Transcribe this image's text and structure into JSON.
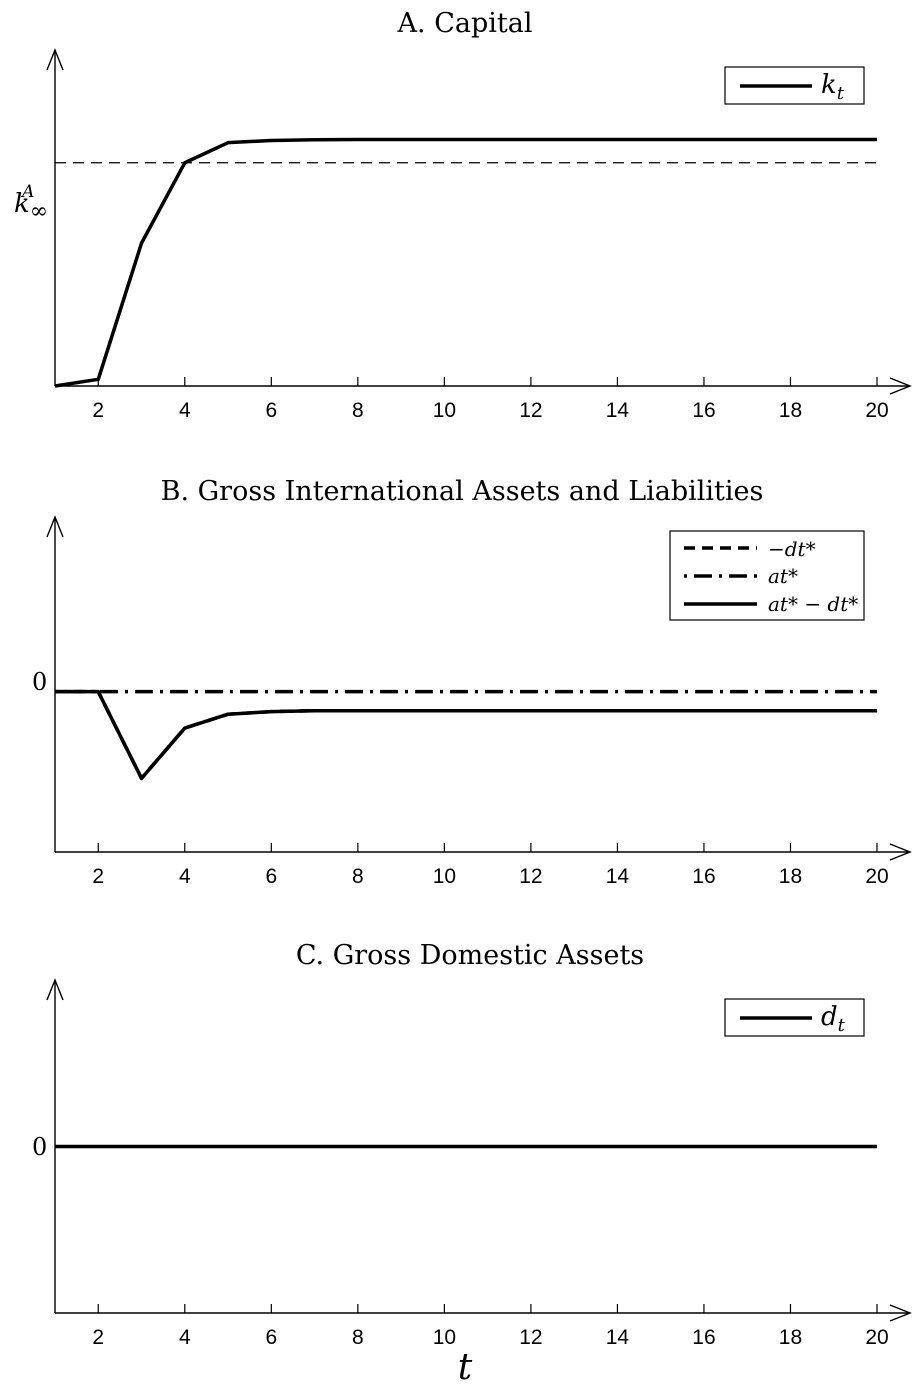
{
  "chart_data": [
    {
      "type": "line",
      "title": "A. Capital",
      "x": [
        1,
        2,
        3,
        4,
        5,
        6,
        7,
        8,
        9,
        10,
        11,
        12,
        13,
        14,
        15,
        16,
        17,
        18,
        19,
        20
      ],
      "xticks": [
        2,
        4,
        6,
        8,
        10,
        12,
        14,
        16,
        18,
        20
      ],
      "xlim": [
        1,
        20
      ],
      "ylim": [
        0,
        1.55
      ],
      "reference_line": {
        "value": 1.0,
        "label": "k∞A",
        "label_base": "k",
        "label_sup": "A",
        "label_sub": "∞",
        "style": "dashed"
      },
      "series": [
        {
          "name": "kt",
          "name_base": "k",
          "name_sub": "t",
          "style": "solid",
          "values": [
            0,
            0.03,
            0.64,
            1.0,
            1.09,
            1.1,
            1.103,
            1.104,
            1.104,
            1.104,
            1.104,
            1.104,
            1.104,
            1.104,
            1.104,
            1.104,
            1.104,
            1.104,
            1.104,
            1.104
          ]
        }
      ],
      "legend_position": "top-right"
    },
    {
      "type": "line",
      "title": "B. Gross International Assets and Liabilities",
      "x": [
        1,
        2,
        3,
        4,
        5,
        6,
        7,
        8,
        9,
        10,
        11,
        12,
        13,
        14,
        15,
        16,
        17,
        18,
        19,
        20
      ],
      "xticks": [
        2,
        4,
        6,
        8,
        10,
        12,
        14,
        16,
        18,
        20
      ],
      "xlim": [
        1,
        20
      ],
      "ylim": [
        -1.85,
        1.75
      ],
      "yticks": [
        {
          "value": 0,
          "label": "0"
        }
      ],
      "series": [
        {
          "name": "−dt*",
          "style": "dashed",
          "values": [
            0,
            0,
            -1.0,
            -0.42,
            -0.26,
            -0.23,
            -0.22,
            -0.22,
            -0.22,
            -0.22,
            -0.22,
            -0.22,
            -0.22,
            -0.22,
            -0.22,
            -0.22,
            -0.22,
            -0.22,
            -0.22,
            -0.22
          ]
        },
        {
          "name": "at*",
          "style": "dashdot",
          "values": [
            0,
            0,
            0,
            0,
            0,
            0,
            0,
            0,
            0,
            0,
            0,
            0,
            0,
            0,
            0,
            0,
            0,
            0,
            0,
            0
          ]
        },
        {
          "name": "at* − dt*",
          "style": "solid",
          "values": [
            0,
            0,
            -1.0,
            -0.42,
            -0.26,
            -0.23,
            -0.22,
            -0.22,
            -0.22,
            -0.22,
            -0.22,
            -0.22,
            -0.22,
            -0.22,
            -0.22,
            -0.22,
            -0.22,
            -0.22,
            -0.22,
            -0.22
          ]
        }
      ],
      "legend_position": "top-right"
    },
    {
      "type": "line",
      "title": "C. Gross Domestic Assets",
      "x": [
        1,
        2,
        3,
        4,
        5,
        6,
        7,
        8,
        9,
        10,
        11,
        12,
        13,
        14,
        15,
        16,
        17,
        18,
        19,
        20
      ],
      "xticks": [
        2,
        4,
        6,
        8,
        10,
        12,
        14,
        16,
        18,
        20
      ],
      "xlim": [
        1,
        20
      ],
      "ylim": [
        -1,
        1
      ],
      "yticks": [
        {
          "value": 0,
          "label": "0"
        }
      ],
      "xlabel": "t",
      "series": [
        {
          "name": "dt",
          "name_base": "d",
          "name_sub": "t",
          "style": "solid",
          "values": [
            0,
            0,
            0,
            0,
            0,
            0,
            0,
            0,
            0,
            0,
            0,
            0,
            0,
            0,
            0,
            0,
            0,
            0,
            0,
            0
          ]
        }
      ],
      "legend_position": "top-right"
    }
  ]
}
